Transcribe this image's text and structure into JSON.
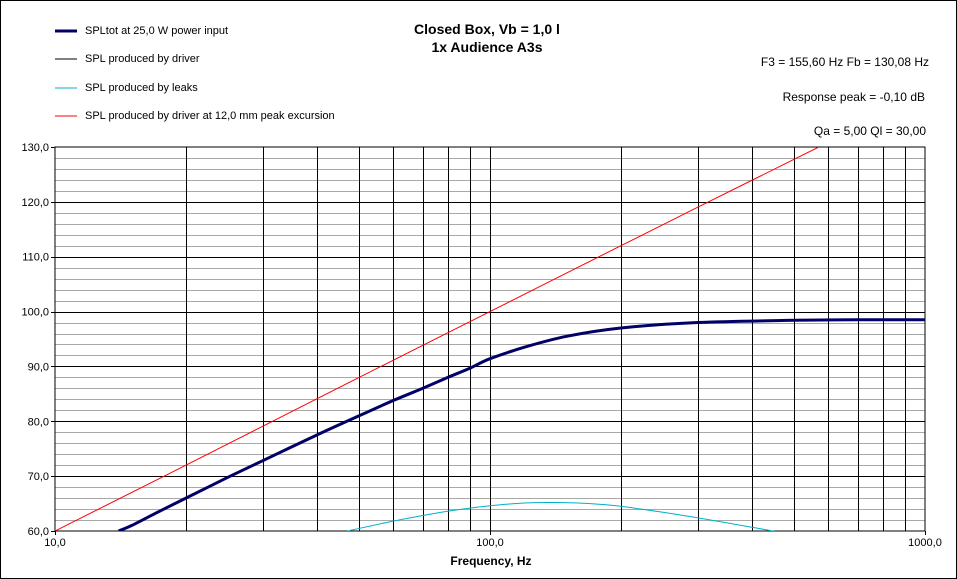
{
  "chart_data": {
    "type": "line",
    "title": "Closed Box, Vb = 1,0 l",
    "subtitle": "1x Audience A3s",
    "xlabel": "Frequency, Hz",
    "ylabel": "",
    "x_scale": "log",
    "xlim": [
      10,
      1000
    ],
    "ylim": [
      60,
      130
    ],
    "x_tick_labels": [
      "10,0",
      "100,0",
      "1000,0"
    ],
    "y_tick_labels": [
      "60,0",
      "70,0",
      "80,0",
      "90,0",
      "100,0",
      "110,0",
      "120,0",
      "130,0"
    ],
    "grid": true,
    "legend_position": "top-left",
    "annotations": [
      "F3 = 155,60  Hz   Fb = 130,08  Hz",
      "Response peak = -0,10  dB",
      "Qa = 5,00   Ql = 30,00"
    ],
    "series": [
      {
        "name": "SPLtot at 25,0 W power input",
        "color": "#000066",
        "x": [
          14,
          15,
          17,
          20,
          25,
          30,
          40,
          50,
          60,
          70,
          80,
          90,
          100,
          120,
          150,
          200,
          300,
          500,
          700,
          1000
        ],
        "y": [
          60.0,
          61.0,
          63.2,
          66.0,
          69.8,
          72.8,
          77.5,
          81.0,
          83.8,
          86.0,
          88.0,
          89.7,
          91.4,
          93.5,
          95.5,
          97.0,
          98.0,
          98.4,
          98.5,
          98.5
        ]
      },
      {
        "name": "SPL produced by driver",
        "color": "#000000",
        "x": [
          14,
          15,
          17,
          20,
          25,
          30,
          40,
          50,
          60,
          70,
          80,
          90,
          100,
          120,
          150,
          200,
          300,
          500,
          700,
          1000
        ],
        "y": [
          60.0,
          61.0,
          63.2,
          66.0,
          69.8,
          72.8,
          77.5,
          81.0,
          83.8,
          86.0,
          88.0,
          89.7,
          91.4,
          93.5,
          95.5,
          97.0,
          98.0,
          98.4,
          98.5,
          98.5
        ]
      },
      {
        "name": "SPL produced by leaks",
        "color": "#00B0C8",
        "x": [
          47,
          60,
          80,
          100,
          120,
          140,
          170,
          200,
          250,
          300,
          400,
          490
        ],
        "y": [
          60.0,
          61.8,
          63.6,
          64.6,
          65.1,
          65.2,
          65.0,
          64.5,
          63.4,
          62.4,
          60.7,
          59.4
        ]
      },
      {
        "name": "SPL produced by driver at 12,0 mm peak excursion",
        "color": "#FF0000",
        "x": [
          10,
          20,
          50,
          100,
          200,
          300,
          570
        ],
        "y": [
          60.0,
          72.0,
          88.0,
          100.0,
          112.0,
          119.0,
          130.0
        ]
      }
    ]
  }
}
